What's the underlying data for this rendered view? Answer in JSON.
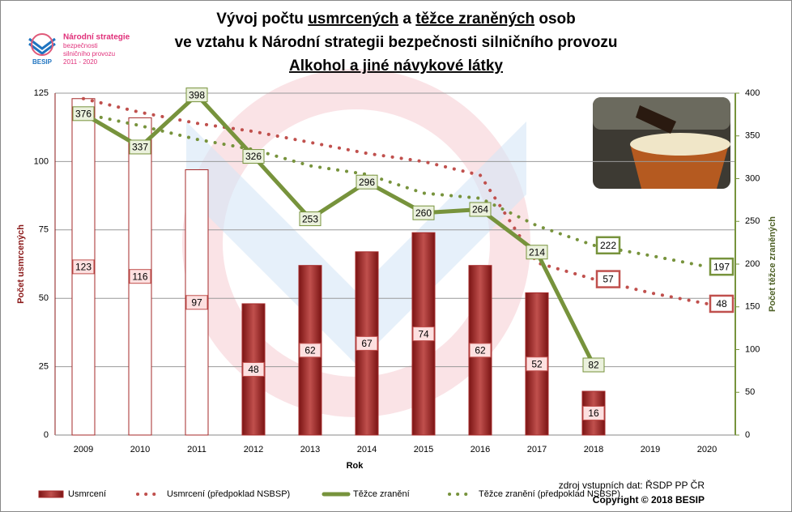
{
  "chart_data": {
    "type": "combo",
    "title_lines": [
      [
        {
          "text": "Vývoj počtu "
        },
        {
          "text": "usmrcených",
          "underline": true
        },
        {
          "text": " a "
        },
        {
          "text": "těžce zraněných",
          "underline": true
        },
        {
          "text": " osob"
        }
      ],
      [
        {
          "text": "ve vztahu k Národní strategii bezpečnosti silničního provozu"
        }
      ],
      [
        {
          "text": "Alkohol a jiné návykové látky",
          "underline": true
        }
      ]
    ],
    "logo": {
      "lines": [
        "Národní strategie",
        "bezpečnosti",
        "silničního provozu",
        "2011 - 2020"
      ],
      "brand": "BESIP"
    },
    "x_label": "Rok",
    "y_label": "Počet usmrcených",
    "y2_label": "Počet těžce zraněných",
    "categories": [
      "2009",
      "2010",
      "2011",
      "2012",
      "2013",
      "2014",
      "2015",
      "2016",
      "2017",
      "2018",
      "2019",
      "2020"
    ],
    "ylim": [
      0,
      125
    ],
    "yticks": [
      0,
      25,
      50,
      75,
      100,
      125
    ],
    "y2lim": [
      0,
      400
    ],
    "y2ticks": [
      0,
      50,
      100,
      150,
      200,
      250,
      300,
      350,
      400
    ],
    "grid": true,
    "series": [
      {
        "name": "Usmrcení",
        "type": "bar",
        "color": "#a52a2a",
        "hollow": [
          true,
          true,
          true,
          false,
          false,
          false,
          false,
          false,
          false,
          false,
          false,
          false
        ],
        "values": [
          123,
          116,
          97,
          48,
          62,
          67,
          74,
          62,
          52,
          16,
          null,
          null
        ]
      },
      {
        "name": "Usmrcení (předpoklad NSBSP)",
        "type": "dotted",
        "color": "#c0504d",
        "values": [
          123,
          118,
          114,
          111,
          107,
          103,
          100,
          95,
          63,
          57,
          52,
          48
        ],
        "value_labels": [
          null,
          null,
          null,
          null,
          null,
          null,
          null,
          null,
          null,
          "57",
          null,
          "48"
        ]
      },
      {
        "name": "Těžce zranění",
        "type": "line",
        "axis": "y2",
        "color": "#77933c",
        "values": [
          376,
          337,
          398,
          326,
          253,
          296,
          260,
          264,
          214,
          82,
          null,
          null
        ]
      },
      {
        "name": "Těžce zranění (předpoklad NSBSP)",
        "type": "dotted",
        "axis": "y2",
        "color": "#77933c",
        "values": [
          376,
          362,
          346,
          334,
          315,
          305,
          283,
          277,
          245,
          222,
          210,
          197
        ],
        "value_labels": [
          null,
          null,
          null,
          null,
          null,
          null,
          null,
          null,
          null,
          "222",
          null,
          "197"
        ]
      }
    ],
    "source": "zdroj vstupních dat: ŘSDP PP ČR",
    "copyright": "Copyright © 2018 BESIP"
  }
}
